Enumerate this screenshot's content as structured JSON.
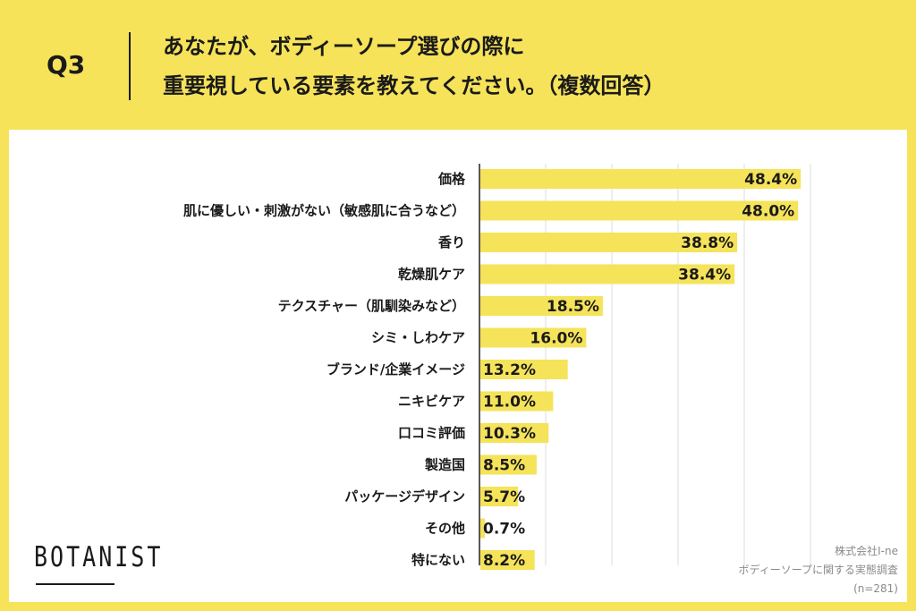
{
  "header": {
    "question": "Q3",
    "title_line1": "あなたが、ボディーソープ選びの際に",
    "title_line2": "重要視している要素を教えてください。（複数回答）"
  },
  "logo": "BOTANIST",
  "source": {
    "company": "株式会社I-ne",
    "survey": "ボディーソープに関する実態調査",
    "sample": "(n=281)"
  },
  "colors": {
    "background": "#f6e35a",
    "bar": "#f5e35a",
    "panel": "#ffffff",
    "grid": "#dcdcdc"
  },
  "chart_data": {
    "type": "bar",
    "orientation": "horizontal",
    "categories": [
      "価格",
      "肌に優しい・刺激がない（敏感肌に合うなど）",
      "香り",
      "乾燥肌ケア",
      "テクスチャー（肌馴染みなど）",
      "シミ・しわケア",
      "ブランド/企業イメージ",
      "ニキビケア",
      "口コミ評価",
      "製造国",
      "パッケージデザイン",
      "その他",
      "特にない"
    ],
    "values": [
      48.4,
      48.0,
      38.8,
      38.4,
      18.5,
      16.0,
      13.2,
      11.0,
      10.3,
      8.5,
      5.7,
      0.7,
      8.2
    ],
    "value_labels": [
      "48.4%",
      "48.0%",
      "38.8%",
      "38.4%",
      "18.5%",
      "16.0%",
      "13.2%",
      "11.0%",
      "10.3%",
      "8.5%",
      "5.7%",
      "0.7%",
      "8.2%"
    ],
    "xlim": [
      0,
      50
    ],
    "grid": true
  }
}
